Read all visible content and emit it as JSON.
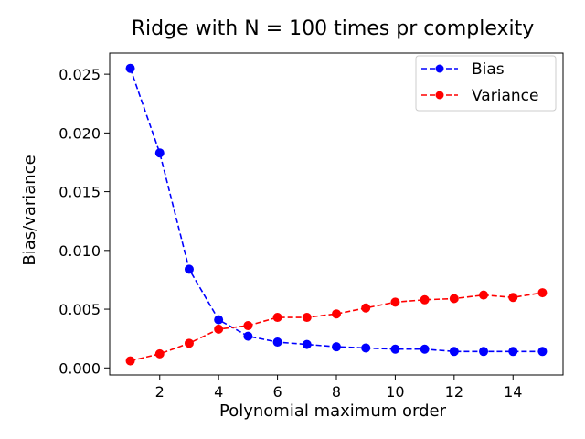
{
  "chart_data": {
    "type": "line",
    "title": "Ridge with N = 100 times pr complexity",
    "xlabel": "Polynomial maximum order",
    "ylabel": "Bias/variance",
    "xlim": [
      0.3,
      15.7
    ],
    "ylim": [
      -0.0006,
      0.0268
    ],
    "xticks": [
      2,
      4,
      6,
      8,
      10,
      12,
      14
    ],
    "xtick_labels": [
      "2",
      "4",
      "6",
      "8",
      "10",
      "12",
      "14"
    ],
    "yticks": [
      0.0,
      0.005,
      0.01,
      0.015,
      0.02,
      0.025
    ],
    "ytick_labels": [
      "0.000",
      "0.005",
      "0.010",
      "0.015",
      "0.020",
      "0.025"
    ],
    "grid": false,
    "legend_position": "top-right",
    "x": [
      1,
      2,
      3,
      4,
      5,
      6,
      7,
      8,
      9,
      10,
      11,
      12,
      13,
      14,
      15
    ],
    "series": [
      {
        "name": "Bias",
        "color": "#0000ff",
        "style": "dashed",
        "marker": "circle",
        "values": [
          0.0255,
          0.0183,
          0.0084,
          0.0041,
          0.0027,
          0.0022,
          0.002,
          0.0018,
          0.0017,
          0.0016,
          0.0016,
          0.0014,
          0.0014,
          0.0014,
          0.0014
        ]
      },
      {
        "name": "Variance",
        "color": "#ff0000",
        "style": "dashed",
        "marker": "circle",
        "values": [
          0.0006,
          0.0012,
          0.0021,
          0.0033,
          0.0036,
          0.0043,
          0.0043,
          0.0046,
          0.0051,
          0.0056,
          0.0058,
          0.0059,
          0.0062,
          0.006,
          0.0064
        ]
      }
    ]
  }
}
